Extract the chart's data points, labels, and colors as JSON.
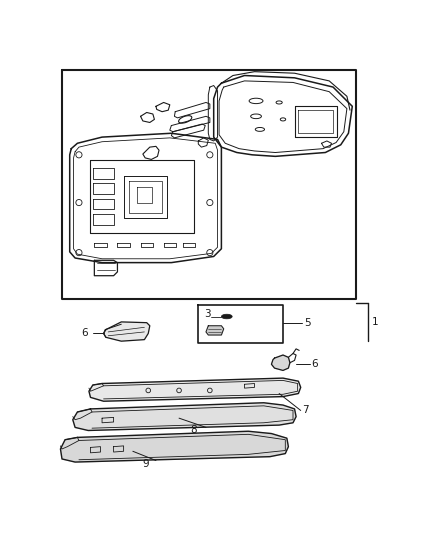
{
  "background_color": "#ffffff",
  "line_color": "#1a1a1a",
  "figsize": [
    4.38,
    5.33
  ],
  "dpi": 100,
  "label_fontsize": 7.5
}
